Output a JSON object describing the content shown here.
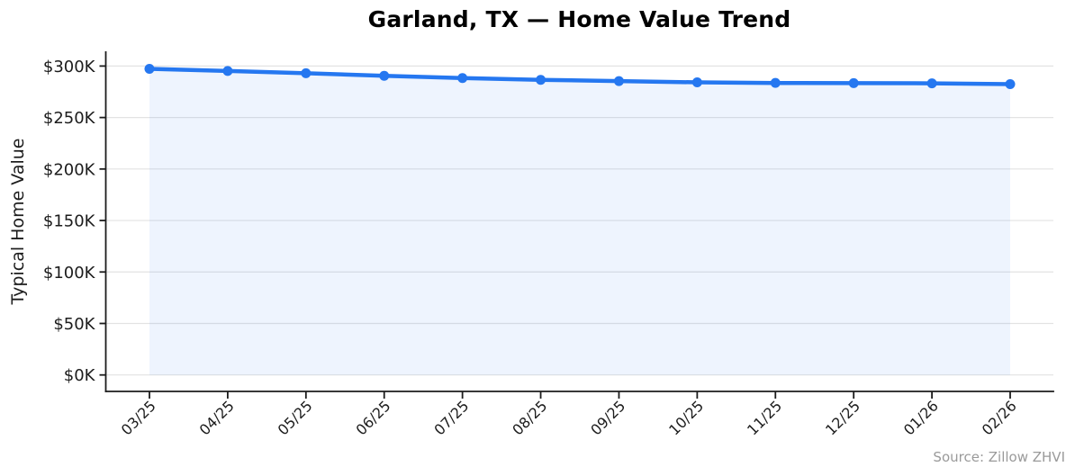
{
  "chart_data": {
    "type": "line",
    "title": "Garland, TX — Home Value Trend",
    "ylabel": "Typical Home Value",
    "xlabel": "",
    "source": "Source: Zillow ZHVI",
    "categories": [
      "03/25",
      "04/25",
      "05/25",
      "06/25",
      "07/25",
      "08/25",
      "09/25",
      "10/25",
      "11/25",
      "12/25",
      "01/26",
      "02/26"
    ],
    "series": [
      {
        "name": "Typical Home Value ($K)",
        "values": [
          297.3,
          295.2,
          293.0,
          290.5,
          288.3,
          286.6,
          285.4,
          284.2,
          283.6,
          283.4,
          283.2,
          282.4
        ]
      }
    ],
    "y_ticks": [
      0,
      50,
      100,
      150,
      200,
      250,
      300
    ],
    "y_tick_labels": [
      "$0K",
      "$50K",
      "$100K",
      "$150K",
      "$200K",
      "$250K",
      "$300K"
    ],
    "ylim": [
      0,
      300
    ],
    "grid": "horizontal",
    "legend": "none",
    "area_fill": true,
    "marker": "circle",
    "x_tick_rotation_deg": 45,
    "colors": {
      "line": "#2577f0",
      "marker": "#2577f0",
      "area_fill": "rgba(37,119,240,0.08)",
      "grid": "#e3e3e3",
      "axis": "#1c1c1c",
      "tick_label": "#1c1c1c",
      "title": "#000000",
      "source_text": "#9a9a9a"
    }
  }
}
